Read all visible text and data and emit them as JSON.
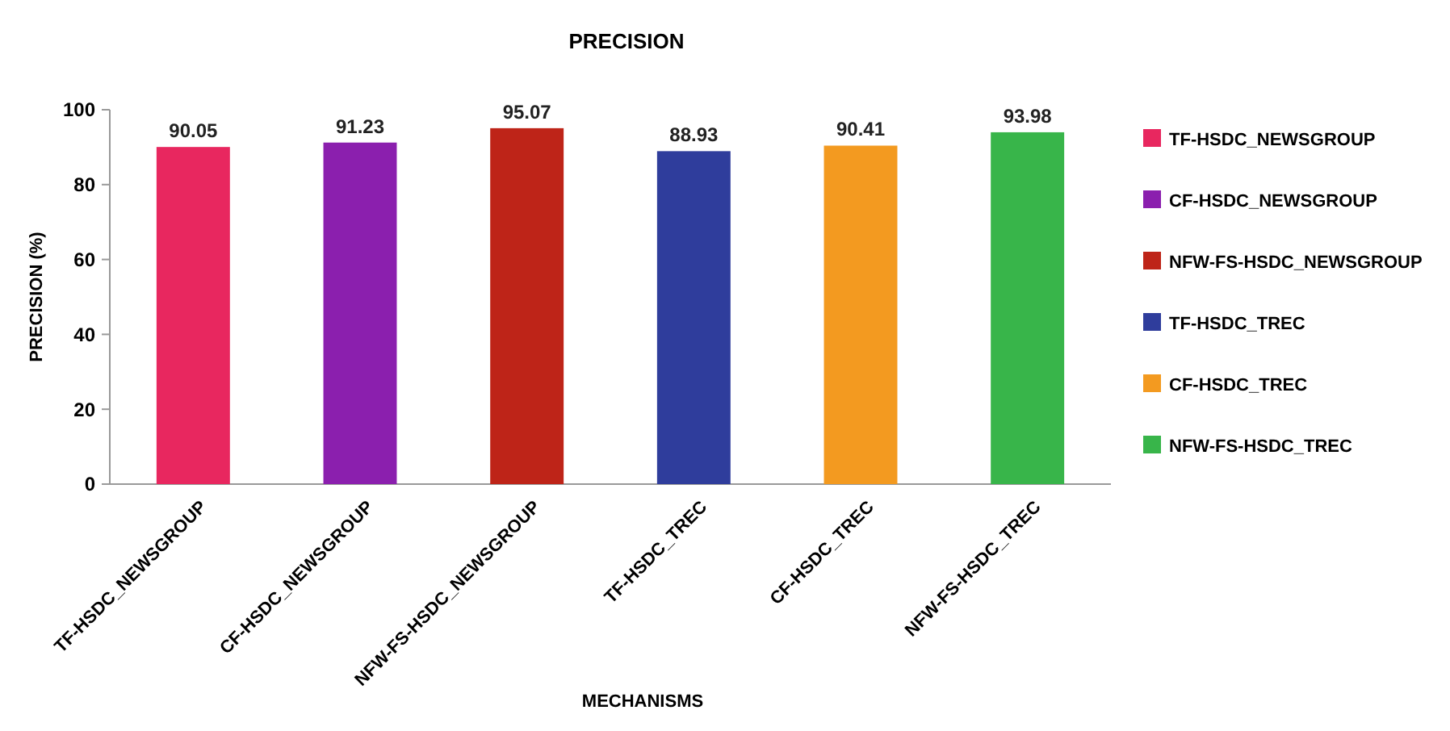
{
  "chart_data": {
    "type": "bar",
    "title": "PRECISION",
    "xlabel": "MECHANISMS",
    "ylabel": "PRECISION (%)",
    "categories": [
      "TF-HSDC_NEWSGROUP",
      "CF-HSDC_NEWSGROUP",
      "NFW-FS-HSDC_NEWSGROUP",
      "TF-HSDC_TREC",
      "CF-HSDC_TREC",
      "NFW-FS-HSDC_TREC"
    ],
    "series": [
      {
        "name": "TF-HSDC_NEWSGROUP",
        "color": "#e8275f",
        "values": [
          90.05,
          null,
          null,
          null,
          null,
          null
        ]
      },
      {
        "name": "CF-HSDC_NEWSGROUP",
        "color": "#8b1fae",
        "values": [
          null,
          91.23,
          null,
          null,
          null,
          null
        ]
      },
      {
        "name": "NFW-FS-HSDC_NEWSGROUP",
        "color": "#be2418",
        "values": [
          null,
          null,
          95.07,
          null,
          null,
          null
        ]
      },
      {
        "name": "TF-HSDC_TREC",
        "color": "#2f3d9c",
        "values": [
          null,
          null,
          null,
          88.93,
          null,
          null
        ]
      },
      {
        "name": "CF-HSDC_TREC",
        "color": "#f39a20",
        "values": [
          null,
          null,
          null,
          null,
          90.41,
          null
        ]
      },
      {
        "name": "NFW-FS-HSDC_TREC",
        "color": "#38b54a",
        "values": [
          null,
          null,
          null,
          null,
          null,
          93.98
        ]
      }
    ],
    "ylim": [
      0,
      100
    ],
    "yticks": [
      0,
      20,
      40,
      60,
      80,
      100
    ],
    "data_labels": true,
    "legend": "right"
  }
}
